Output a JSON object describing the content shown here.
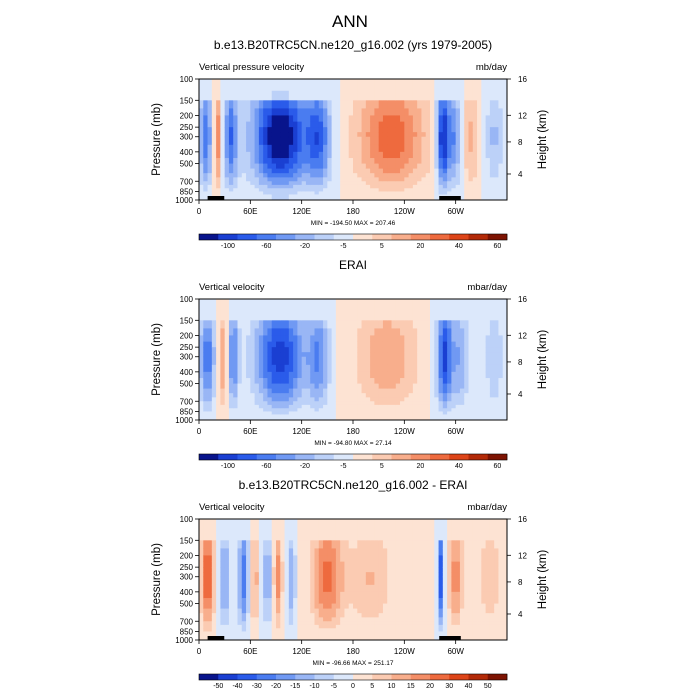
{
  "figure": {
    "title": "ANN"
  },
  "chart_data": [
    {
      "type": "heatmap",
      "title": "b.e13.B20TRC5CN.ne120_g16.002 (yrs 1979-2005)",
      "subtitle_left": "Vertical pressure velocity",
      "subtitle_right": "mb/day",
      "ylabel": "Pressure (mb)",
      "ylabel_right": "Height (km)",
      "x_ticks": [
        "0",
        "60E",
        "120E",
        "180",
        "120W",
        "60W"
      ],
      "y_ticks": [
        "100",
        "150",
        "200",
        "250",
        "300",
        "400",
        "500",
        "700",
        "850",
        "1000"
      ],
      "y2_ticks": [
        "4",
        "8",
        "12",
        "16"
      ],
      "stats": "MIN = -194.50  MAX = 207.46",
      "colorbar_labels": [
        "-100",
        "-60",
        "-20",
        "-5",
        "5",
        "20",
        "40",
        "60"
      ],
      "colorbar_colors": [
        "#08148c",
        "#1a3fd2",
        "#2a5bea",
        "#4a7cf0",
        "#7099f3",
        "#99b6f5",
        "#bcd1f8",
        "#dce8fb",
        "#fde3d3",
        "#fbcbb2",
        "#f8ae8c",
        "#f48e67",
        "#ee6a3e",
        "#dd4418",
        "#b32a08",
        "#7d1302"
      ],
      "ylim": [
        1000,
        100
      ],
      "xlim": [
        0,
        360
      ]
    },
    {
      "type": "heatmap",
      "title": "ERAI",
      "subtitle_left": "Vertical velocity",
      "subtitle_right": "mbar/day",
      "ylabel": "Pressure (mb)",
      "ylabel_right": "Height (km)",
      "x_ticks": [
        "0",
        "60E",
        "120E",
        "180",
        "120W",
        "60W"
      ],
      "y_ticks": [
        "100",
        "150",
        "200",
        "250",
        "300",
        "400",
        "500",
        "700",
        "850",
        "1000"
      ],
      "y2_ticks": [
        "4",
        "8",
        "12",
        "16"
      ],
      "stats": "MIN = -94.80  MAX = 27.14",
      "colorbar_labels": [
        "-100",
        "-60",
        "-20",
        "-5",
        "5",
        "20",
        "40",
        "60"
      ],
      "colorbar_colors": [
        "#08148c",
        "#1a3fd2",
        "#2a5bea",
        "#4a7cf0",
        "#7099f3",
        "#99b6f5",
        "#bcd1f8",
        "#dce8fb",
        "#fde3d3",
        "#fbcbb2",
        "#f8ae8c",
        "#f48e67",
        "#ee6a3e",
        "#dd4418",
        "#b32a08",
        "#7d1302"
      ],
      "ylim": [
        1000,
        100
      ],
      "xlim": [
        0,
        360
      ]
    },
    {
      "type": "heatmap",
      "title": "b.e13.B20TRC5CN.ne120_g16.002 - ERAI",
      "subtitle_left": "Vertical velocity",
      "subtitle_right": "mbar/day",
      "ylabel": "Pressure (mb)",
      "ylabel_right": "Height (km)",
      "x_ticks": [
        "0",
        "60E",
        "120E",
        "180",
        "120W",
        "60W"
      ],
      "y_ticks": [
        "100",
        "150",
        "200",
        "250",
        "300",
        "400",
        "500",
        "700",
        "850",
        "1000"
      ],
      "y2_ticks": [
        "4",
        "8",
        "12",
        "16"
      ],
      "stats": "MIN = -96.66  MAX = 251.17",
      "colorbar_labels": [
        "-50",
        "-40",
        "-30",
        "-20",
        "-15",
        "-10",
        "-5",
        "0",
        "5",
        "10",
        "15",
        "20",
        "30",
        "40",
        "50"
      ],
      "colorbar_colors": [
        "#08148c",
        "#1a3fd2",
        "#2a5bea",
        "#4a7cf0",
        "#7099f3",
        "#99b6f5",
        "#bcd1f8",
        "#dce8fb",
        "#fde3d3",
        "#fbcbb2",
        "#f8ae8c",
        "#f48e67",
        "#ee6a3e",
        "#dd4418",
        "#b32a08",
        "#7d1302"
      ],
      "ylim": [
        1000,
        100
      ],
      "xlim": [
        0,
        360
      ]
    }
  ]
}
